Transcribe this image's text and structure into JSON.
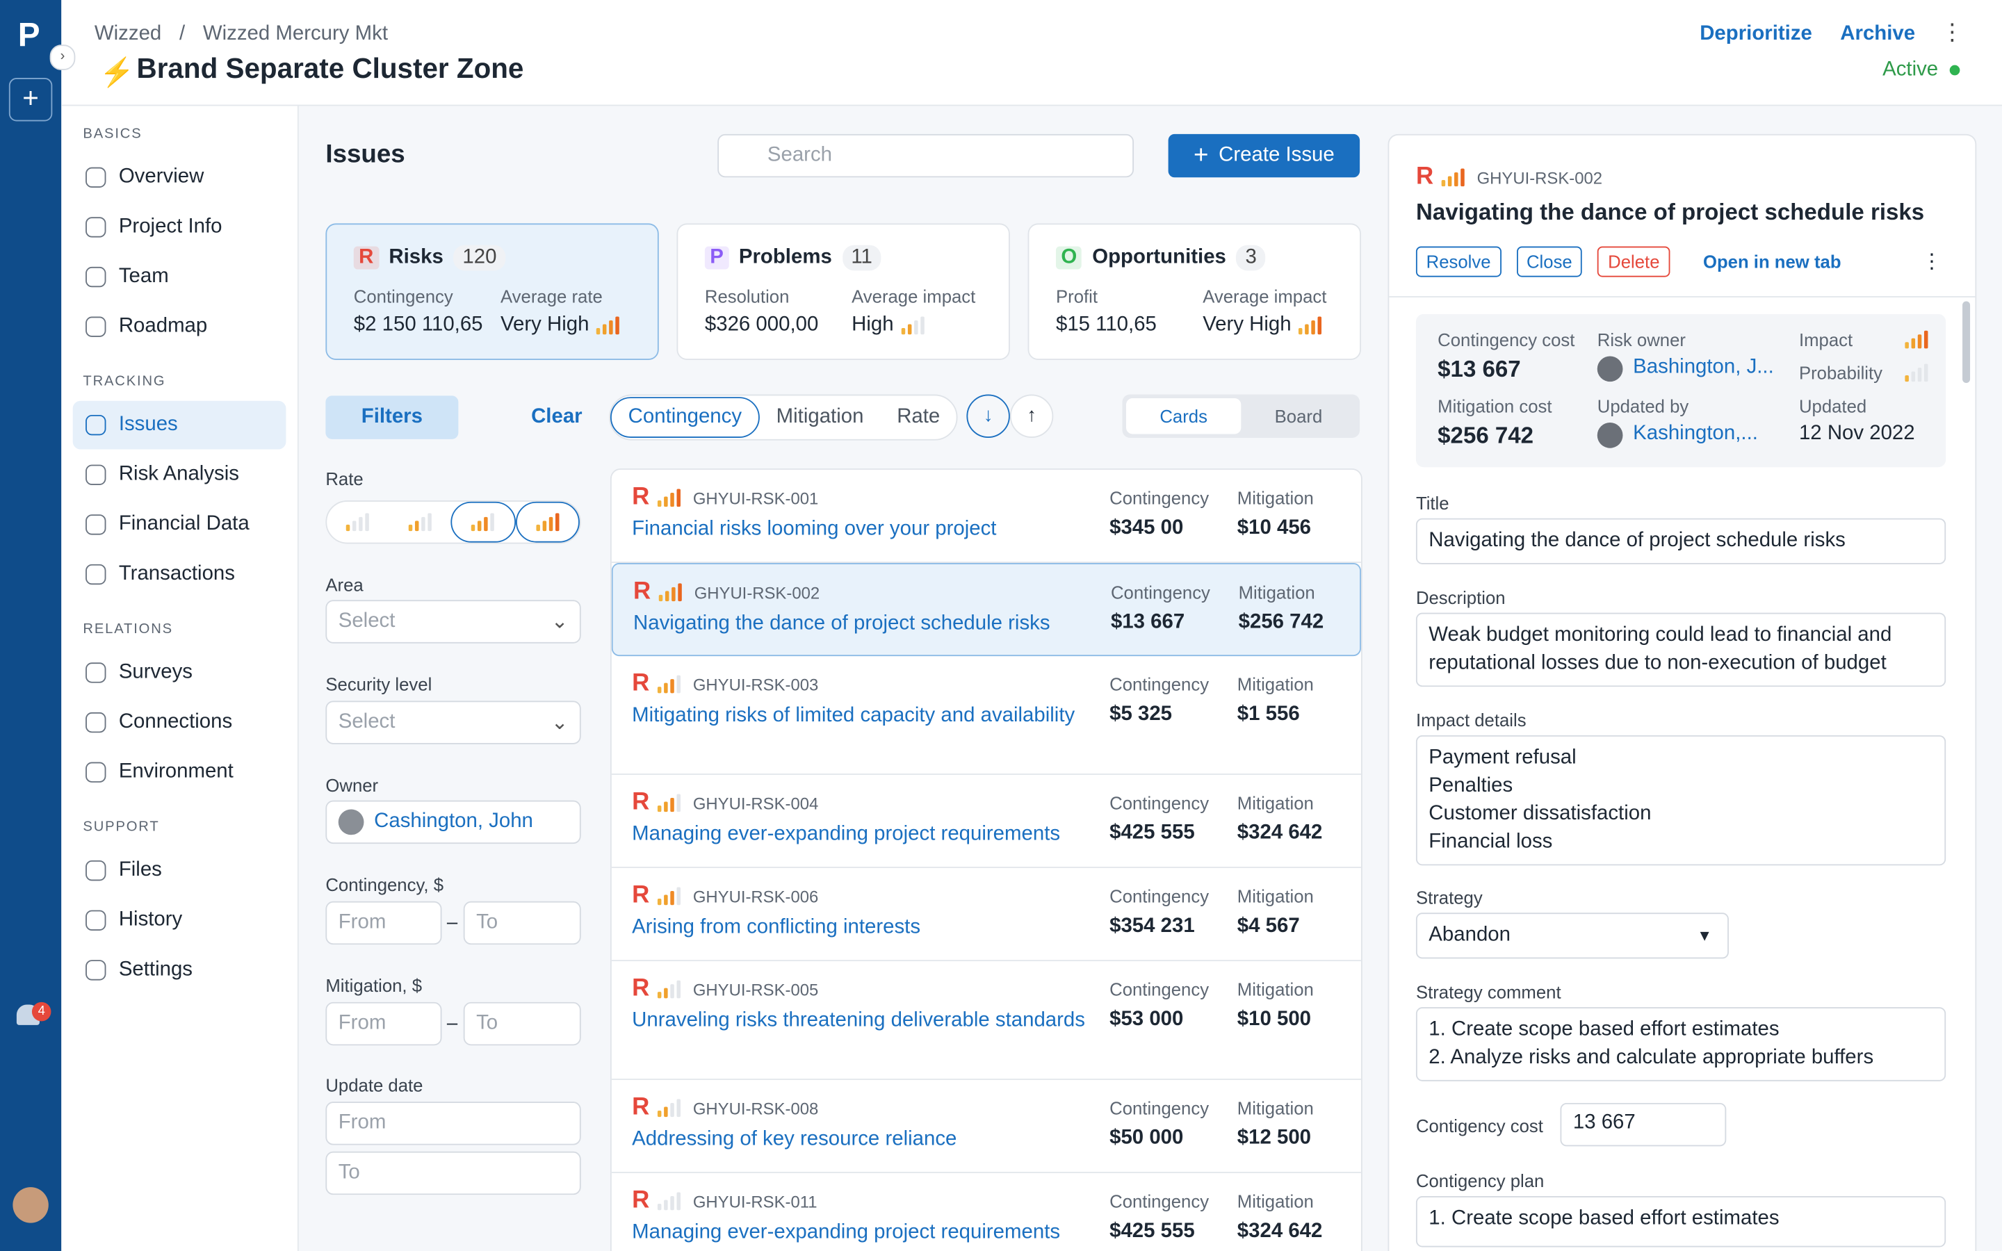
{
  "rail": {
    "badge": 4
  },
  "header": {
    "breadcrumb": [
      "Wizzed",
      "Wizzed Mercury Mkt"
    ],
    "separator": "/",
    "title": "Brand Separate Cluster Zone",
    "actions": [
      "Deprioritize",
      "Archive"
    ],
    "status": "Active"
  },
  "nav": {
    "sections": [
      {
        "label": "BASICS",
        "items": [
          {
            "text": "Overview"
          },
          {
            "text": "Project Info"
          },
          {
            "text": "Team"
          },
          {
            "text": "Roadmap"
          }
        ]
      },
      {
        "label": "TRACKING",
        "items": [
          {
            "text": "Issues",
            "active": true
          },
          {
            "text": "Risk Analysis"
          },
          {
            "text": "Financial Data"
          },
          {
            "text": "Transactions"
          }
        ]
      },
      {
        "label": "RELATIONS",
        "items": [
          {
            "text": "Surveys"
          },
          {
            "text": "Connections"
          },
          {
            "text": "Environment"
          }
        ]
      },
      {
        "label": "SUPPORT",
        "items": [
          {
            "text": "Files"
          },
          {
            "text": "History"
          },
          {
            "text": "Settings"
          }
        ]
      }
    ]
  },
  "issues": {
    "title": "Issues",
    "search": "Search",
    "create": "Create Issue",
    "summary": [
      {
        "letter": "R",
        "color": "#e5483b",
        "name": "Risks",
        "count": 120,
        "selected": true,
        "labels": [
          "Contingency",
          "Average rate"
        ],
        "values": [
          "$2 150 110,65",
          "Very High"
        ],
        "rate": 4
      },
      {
        "letter": "P",
        "color": "#8b5cf6",
        "name": "Problems",
        "count": 11,
        "labels": [
          "Resolution",
          "Average impact"
        ],
        "values": [
          "$326 000,00",
          "High"
        ],
        "rate": 2
      },
      {
        "letter": "O",
        "color": "#2fb350",
        "name": "Opportunities",
        "count": 3,
        "labels": [
          "Profit",
          "Average impact"
        ],
        "values": [
          "$15 110,65",
          "Very High"
        ],
        "rate": 4
      }
    ],
    "filters_button": "Filters",
    "clear": "Clear",
    "sort_tabs": [
      "Contingency",
      "Mitigation",
      "Rate"
    ],
    "views": [
      "Cards",
      "Board"
    ],
    "filters": {
      "rate_label": "Rate",
      "rates": [
        {
          "level": 1
        },
        {
          "level": 2
        },
        {
          "level": 3,
          "selected": true
        },
        {
          "level": 4,
          "selected": true
        }
      ],
      "area_label": "Area",
      "area": "Select",
      "security_label": "Security level",
      "security": "Select",
      "owner_label": "Owner",
      "owner": "Cashington, John",
      "contingency_label": "Contingency, $",
      "mitigation_label": "Mitigation, $",
      "from": "From",
      "to": "To",
      "dash": "–",
      "date_label": "Update date"
    },
    "card_labels": [
      "Contingency",
      "Mitigation"
    ],
    "list": [
      {
        "letter": "R",
        "rate": 4,
        "id": "GHYUI-RSK-001",
        "title": "Financial risks looming over your project",
        "contingency": "$345 00",
        "mitigation": "$10 456"
      },
      {
        "letter": "R",
        "rate": 4,
        "id": "GHYUI-RSK-002",
        "title": "Navigating the dance of project schedule risks",
        "contingency": "$13 667",
        "mitigation": "$256 742",
        "selected": true
      },
      {
        "letter": "R",
        "rate": 3,
        "id": "GHYUI-RSK-003",
        "title": "Mitigating risks of limited capacity and availability",
        "contingency": "$5 325",
        "mitigation": "$1 556"
      },
      {
        "letter": "R",
        "rate": 3,
        "id": "GHYUI-RSK-004",
        "title": "Managing ever-expanding project requirements",
        "contingency": "$425 555",
        "mitigation": "$324 642"
      },
      {
        "letter": "R",
        "rate": 3,
        "id": "GHYUI-RSK-006",
        "title": "Arising from conflicting interests",
        "contingency": "$354 231",
        "mitigation": "$4 567"
      },
      {
        "letter": "R",
        "rate": 2,
        "id": "GHYUI-RSK-005",
        "title": "Unraveling risks threatening deliverable standards",
        "contingency": "$53 000",
        "mitigation": "$10 500"
      },
      {
        "letter": "R",
        "rate": 2,
        "id": "GHYUI-RSK-008",
        "title": "Addressing of key resource reliance",
        "contingency": "$50 000",
        "mitigation": "$12 500"
      },
      {
        "letter": "R",
        "rate": 0,
        "id": "GHYUI-RSK-011",
        "title": "Managing ever-expanding project requirements",
        "contingency": "$425 555",
        "mitigation": "$324 642"
      }
    ]
  },
  "detail": {
    "letter": "R",
    "rate": 4,
    "id": "GHYUI-RSK-002",
    "title": "Navigating the dance of project schedule risks",
    "actions": [
      "Resolve",
      "Close",
      "Delete"
    ],
    "open": "Open in new tab",
    "summary": {
      "contingency_label": "Contingency cost",
      "contingency": "$13 667",
      "mitigation_label": "Mitigation cost",
      "mitigation": "$256 742",
      "owner_label": "Risk owner",
      "owner": "Bashington, J...",
      "updated_by_label": "Updated by",
      "updated_by": "Kashington,...",
      "impact_label": "Impact",
      "impact": 4,
      "probability_label": "Probability",
      "probability": 1,
      "updated_label": "Updated",
      "updated": "12 Nov 2022"
    },
    "title_label": "Title",
    "description_label": "Description",
    "description": "Weak budget monitoring could lead to financial and reputational losses due to non-execution of budget",
    "impact_label": "Impact details",
    "impact_lines": [
      "Payment refusal",
      "Penalties",
      "Customer dissatisfaction",
      "Financial loss"
    ],
    "strategy_label": "Strategy",
    "strategy": "Abandon",
    "comment_label": "Strategy comment",
    "comment_lines": [
      "1. Create scope based effort estimates",
      "2. Analyze risks and calculate appropriate buffers"
    ],
    "cost_label": "Contigency cost",
    "cost": "13 667",
    "plan_label": "Contigency plan",
    "plan": "1. Create scope based effort estimates"
  }
}
